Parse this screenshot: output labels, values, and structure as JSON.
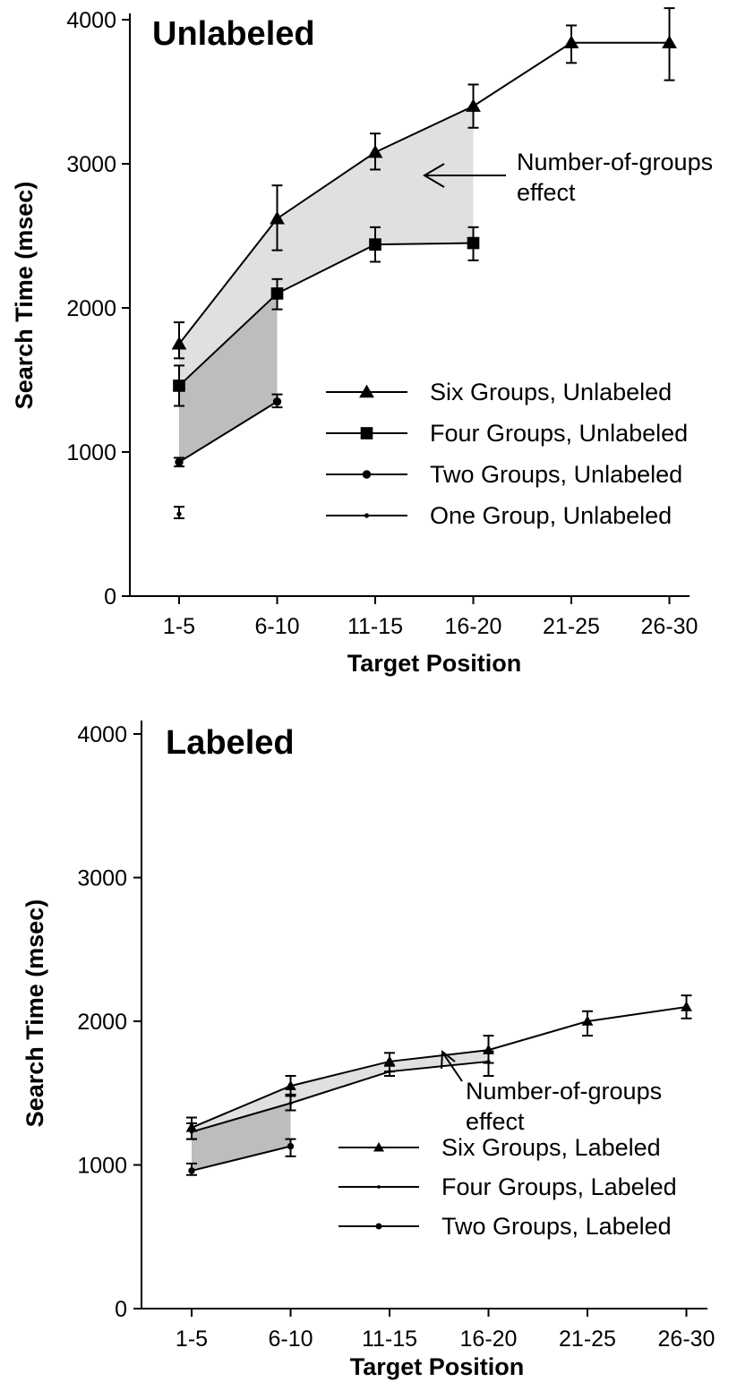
{
  "chart_data": [
    {
      "type": "line",
      "title": "Unlabeled",
      "xlabel": "Target Position",
      "ylabel": "Search Time (msec)",
      "categories": [
        "1-5",
        "6-10",
        "11-15",
        "16-20",
        "21-25",
        "26-30"
      ],
      "ylim": [
        0,
        4000
      ],
      "yticks": [
        "0",
        "1000",
        "2000",
        "3000",
        "4000"
      ],
      "grid": false,
      "legend_position": "right",
      "annotation": [
        "Number-of-groups",
        "effect"
      ],
      "series": [
        {
          "name": "Six Groups, Unlabeled",
          "marker": "triangle",
          "values": [
            1750,
            2620,
            3080,
            3400,
            3840,
            3840
          ],
          "error": [
            [
              1650,
              1900
            ],
            [
              2400,
              2850
            ],
            [
              2960,
              3210
            ],
            [
              3250,
              3550
            ],
            [
              3700,
              3960
            ],
            [
              3580,
              4080
            ]
          ]
        },
        {
          "name": "Four Groups, Unlabeled",
          "marker": "square",
          "values": [
            1460,
            2100,
            2440,
            2450,
            null,
            null
          ],
          "error": [
            [
              1320,
              1600
            ],
            [
              1990,
              2200
            ],
            [
              2320,
              2560
            ],
            [
              2330,
              2560
            ],
            null,
            null
          ]
        },
        {
          "name": "Two Groups, Unlabeled",
          "marker": "circle",
          "values": [
            930,
            1350,
            null,
            null,
            null,
            null
          ],
          "error": [
            [
              900,
              960
            ],
            [
              1310,
              1400
            ],
            null,
            null,
            null,
            null
          ]
        },
        {
          "name": "One Group, Unlabeled",
          "marker": "dot",
          "values": [
            570,
            null,
            null,
            null,
            null,
            null
          ],
          "error": [
            [
              540,
              620
            ],
            null,
            null,
            null,
            null,
            null
          ]
        }
      ]
    },
    {
      "type": "line",
      "title": "Labeled",
      "xlabel": "Target Position",
      "ylabel": "Search Time (msec)",
      "categories": [
        "1-5",
        "6-10",
        "11-15",
        "16-20",
        "21-25",
        "26-30"
      ],
      "ylim": [
        0,
        4000
      ],
      "yticks": [
        "0",
        "1000",
        "2000",
        "3000",
        "4000"
      ],
      "grid": false,
      "legend_position": "bottom-right",
      "annotation": [
        "Number-of-groups",
        "effect"
      ],
      "series": [
        {
          "name": "Six Groups, Labeled",
          "marker": "triangle",
          "values": [
            1260,
            1550,
            1720,
            1800,
            2000,
            2100
          ],
          "error": [
            [
              1180,
              1330
            ],
            [
              1480,
              1620
            ],
            [
              1650,
              1780
            ],
            [
              1710,
              1900
            ],
            [
              1900,
              2070
            ],
            [
              2020,
              2180
            ]
          ]
        },
        {
          "name": "Four Groups, Labeled",
          "marker": "dot",
          "values": [
            1230,
            1430,
            1650,
            1720,
            null,
            null
          ],
          "error": [
            [
              1180,
              1290
            ],
            [
              1380,
              1490
            ],
            [
              1620,
              1690
            ],
            [
              1620,
              1790
            ],
            null,
            null
          ]
        },
        {
          "name": "Two Groups, Labeled",
          "marker": "circle",
          "values": [
            960,
            1130,
            null,
            null,
            null,
            null
          ],
          "error": [
            [
              930,
              1010
            ],
            [
              1060,
              1180
            ],
            null,
            null,
            null,
            null
          ]
        }
      ]
    }
  ]
}
